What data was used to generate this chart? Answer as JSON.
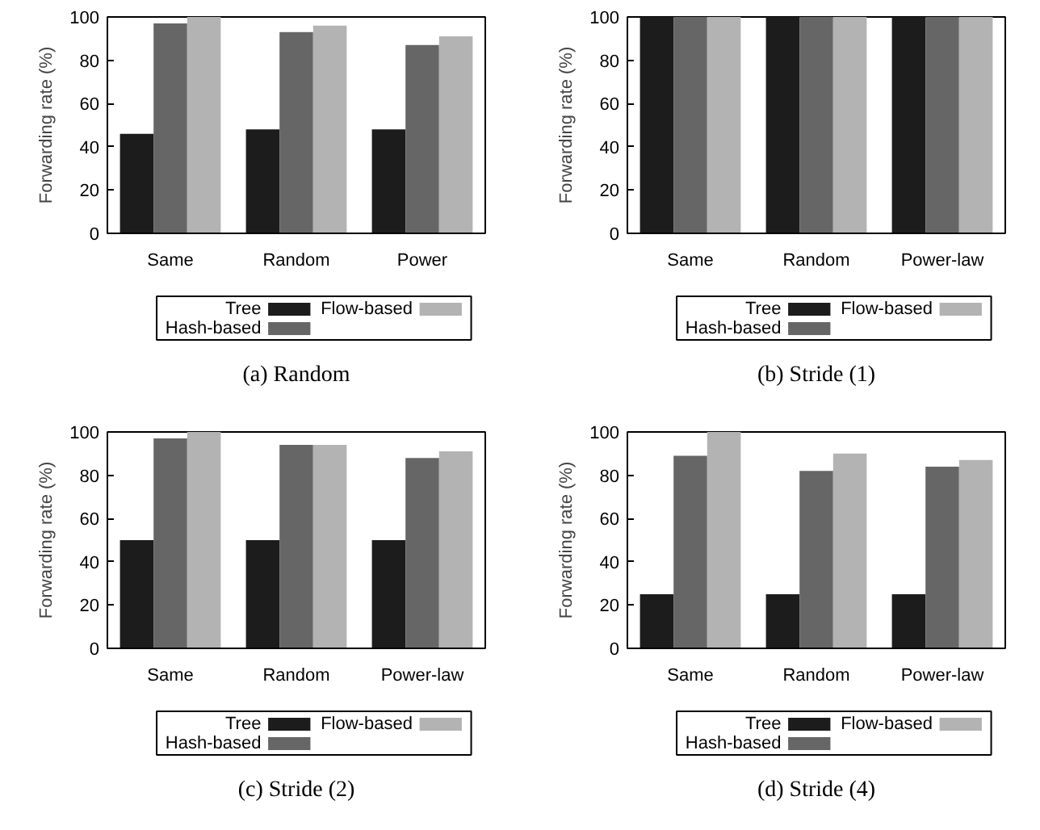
{
  "chart_data": [
    {
      "type": "bar",
      "title": "(a) Random",
      "ylabel": "Forwarding rate (%)",
      "categories": [
        "Same",
        "Random",
        "Power"
      ],
      "ylim": [
        0,
        100
      ],
      "yticks": [
        0,
        20,
        40,
        60,
        80,
        100
      ],
      "legend": "bottom",
      "series": [
        {
          "name": "Tree",
          "color": "#1c1c1c",
          "values": [
            46,
            48,
            48
          ]
        },
        {
          "name": "Hash-based",
          "color": "#666666",
          "values": [
            97,
            93,
            87
          ]
        },
        {
          "name": "Flow-based",
          "color": "#b3b3b3",
          "values": [
            100,
            96,
            91
          ]
        }
      ]
    },
    {
      "type": "bar",
      "title": "(b) Stride (1)",
      "ylabel": "Forwarding rate (%)",
      "categories": [
        "Same",
        "Random",
        "Power-law"
      ],
      "ylim": [
        0,
        100
      ],
      "yticks": [
        0,
        20,
        40,
        60,
        80,
        100
      ],
      "legend": "bottom",
      "series": [
        {
          "name": "Tree",
          "color": "#1c1c1c",
          "values": [
            100,
            100,
            100
          ]
        },
        {
          "name": "Hash-based",
          "color": "#666666",
          "values": [
            100,
            100,
            100
          ]
        },
        {
          "name": "Flow-based",
          "color": "#b3b3b3",
          "values": [
            100,
            100,
            100
          ]
        }
      ]
    },
    {
      "type": "bar",
      "title": "(c) Stride (2)",
      "ylabel": "Forwarding rate (%)",
      "categories": [
        "Same",
        "Random",
        "Power-law"
      ],
      "ylim": [
        0,
        100
      ],
      "yticks": [
        0,
        20,
        40,
        60,
        80,
        100
      ],
      "legend": "bottom",
      "series": [
        {
          "name": "Tree",
          "color": "#1c1c1c",
          "values": [
            50,
            50,
            50
          ]
        },
        {
          "name": "Hash-based",
          "color": "#666666",
          "values": [
            97,
            94,
            88
          ]
        },
        {
          "name": "Flow-based",
          "color": "#b3b3b3",
          "values": [
            100,
            94,
            91
          ]
        }
      ]
    },
    {
      "type": "bar",
      "title": "(d) Stride (4)",
      "ylabel": "Forwarding rate (%)",
      "categories": [
        "Same",
        "Random",
        "Power-law"
      ],
      "ylim": [
        0,
        100
      ],
      "yticks": [
        0,
        20,
        40,
        60,
        80,
        100
      ],
      "legend": "bottom",
      "series": [
        {
          "name": "Tree",
          "color": "#1c1c1c",
          "values": [
            25,
            25,
            25
          ]
        },
        {
          "name": "Hash-based",
          "color": "#666666",
          "values": [
            89,
            82,
            84
          ]
        },
        {
          "name": "Flow-based",
          "color": "#b3b3b3",
          "values": [
            100,
            90,
            87
          ]
        }
      ]
    }
  ]
}
